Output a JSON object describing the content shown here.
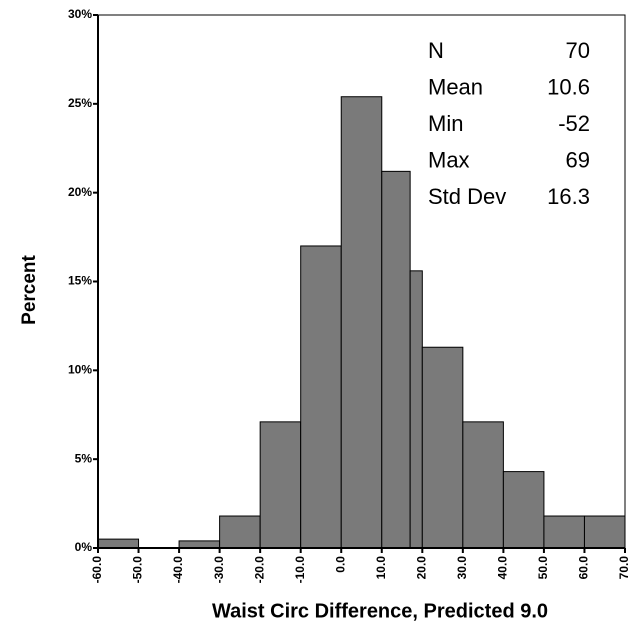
{
  "chart_data": {
    "type": "histogram",
    "xlabel": "Waist Circ Difference, Predicted 9.0",
    "ylabel": "Percent",
    "bins": [
      -60,
      -50,
      -40,
      -30,
      -20,
      -10,
      0,
      10,
      17,
      20,
      30,
      40,
      50,
      60,
      70
    ],
    "values": [
      0.5,
      0,
      0.4,
      1.8,
      7.1,
      17,
      25.4,
      21.2,
      15.6,
      11.3,
      7.1,
      4.3,
      1.8,
      1.8
    ],
    "color": "#7a7a7a",
    "xlim": [
      -60,
      70
    ],
    "xticks": [
      {
        "value": -60,
        "label": "-60.0"
      },
      {
        "value": -50,
        "label": "-50.0"
      },
      {
        "value": -40,
        "label": "-40.0"
      },
      {
        "value": -30,
        "label": "-30.0"
      },
      {
        "value": -20,
        "label": "-20.0"
      },
      {
        "value": -10,
        "label": "-10.0"
      },
      {
        "value": 0,
        "label": "0.0"
      },
      {
        "value": 10,
        "label": "10.0"
      },
      {
        "value": 20,
        "label": "20.0"
      },
      {
        "value": 30,
        "label": "30.0"
      },
      {
        "value": 40,
        "label": "40.0"
      },
      {
        "value": 50,
        "label": "50.0"
      },
      {
        "value": 60,
        "label": "60.0"
      },
      {
        "value": 70,
        "label": "70.0"
      }
    ],
    "ylim": [
      0,
      30
    ],
    "yticks": [
      {
        "value": 0,
        "label": "0%"
      },
      {
        "value": 5,
        "label": "5%"
      },
      {
        "value": 10,
        "label": "10%"
      },
      {
        "value": 15,
        "label": "15%"
      },
      {
        "value": 20,
        "label": "20%"
      },
      {
        "value": 25,
        "label": "25%"
      },
      {
        "value": 30,
        "label": "30%"
      }
    ],
    "stats": [
      {
        "label": "N",
        "value": 70
      },
      {
        "label": "Mean",
        "value": 10.6
      },
      {
        "label": "Min",
        "value": -52
      },
      {
        "label": "Max",
        "value": 69
      },
      {
        "label": "Std Dev",
        "value": 16.3
      }
    ]
  }
}
